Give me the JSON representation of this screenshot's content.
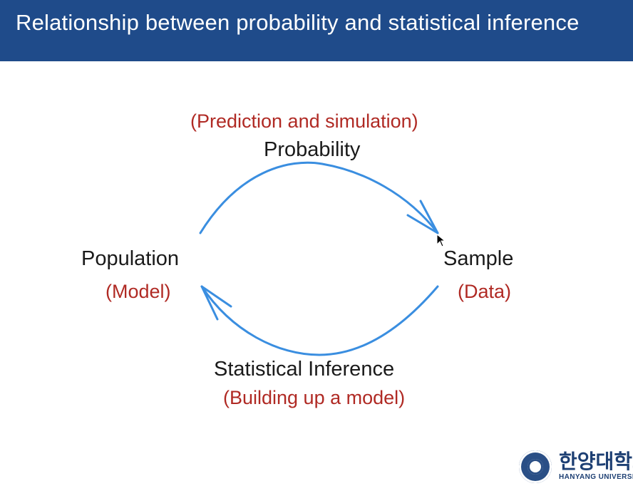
{
  "header": {
    "title": "Relationship between probability and statistical inference"
  },
  "diagram": {
    "top": {
      "annotation": "(Prediction and simulation)",
      "label": "Probability"
    },
    "left": {
      "label": "Population",
      "annotation": "(Model)"
    },
    "right": {
      "label": "Sample",
      "annotation": "(Data)"
    },
    "bottom": {
      "label": "Statistical Inference",
      "annotation": "(Building up a model)"
    }
  },
  "logo": {
    "korean": "한양대학교",
    "english": "HANYANG UNIVERSITY"
  },
  "colors": {
    "header_bg": "#1f4b8a",
    "annotation": "#b02a24",
    "arrow": "#3a8ee0",
    "text": "#1a1a1a"
  }
}
